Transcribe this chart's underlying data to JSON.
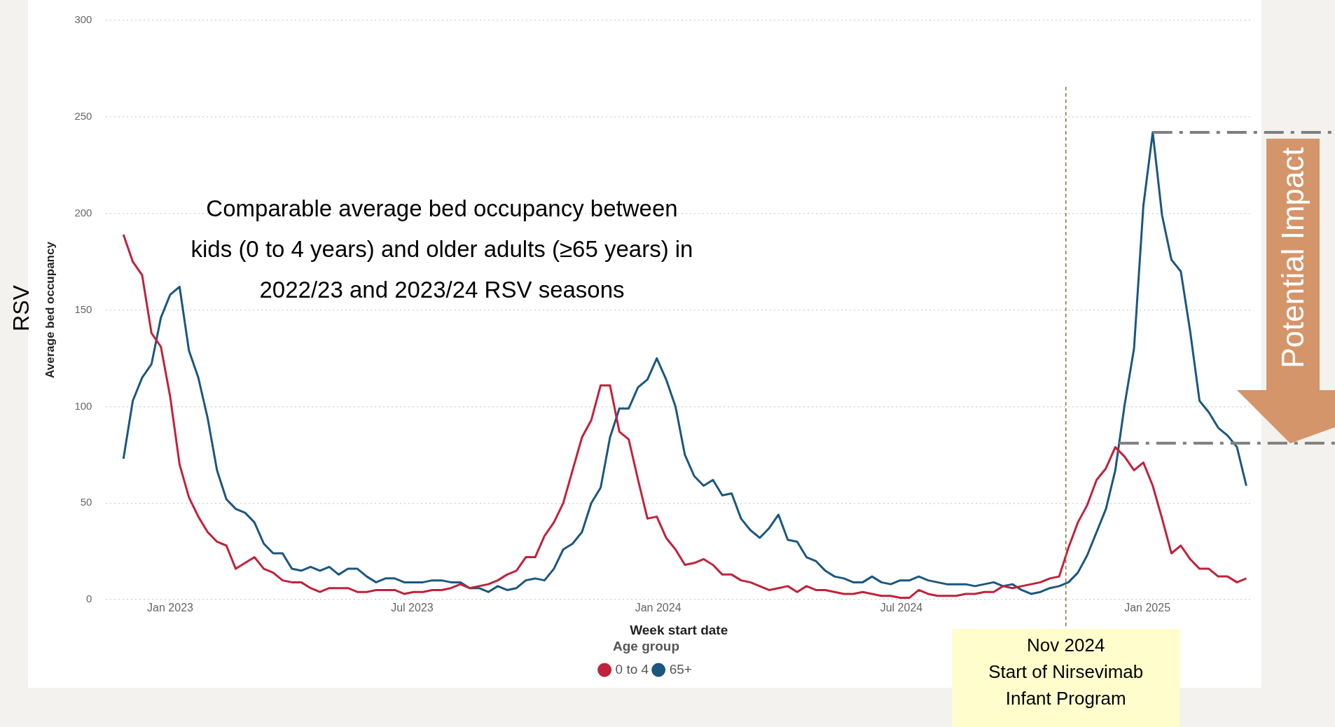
{
  "chart_data": {
    "type": "line",
    "xlabel": "Week start date",
    "ylabel": "Average bed occupancy",
    "legend_title": "Age group",
    "legend": "bottom",
    "grid": "y",
    "marker": "none",
    "line_style": "solid",
    "xlim": [
      "2022-11-14",
      "2025-03-20"
    ],
    "xticks": [
      {
        "value": "2023-01-01",
        "label": "Jan 2023"
      },
      {
        "value": "2023-07-01",
        "label": "Jul 2023"
      },
      {
        "value": "2024-01-01",
        "label": "Jan 2024"
      },
      {
        "value": "2024-07-01",
        "label": "Jul 2024"
      },
      {
        "value": "2025-01-01",
        "label": "Jan 2025"
      }
    ],
    "ylim": [
      0,
      300
    ],
    "yticks": [
      0,
      50,
      100,
      150,
      200,
      250,
      300
    ],
    "x": [
      "2022-11-27",
      "2022-12-04",
      "2022-12-11",
      "2022-12-18",
      "2022-12-25",
      "2023-01-01",
      "2023-01-08",
      "2023-01-15",
      "2023-01-22",
      "2023-01-29",
      "2023-02-05",
      "2023-02-12",
      "2023-02-19",
      "2023-02-26",
      "2023-03-05",
      "2023-03-12",
      "2023-03-19",
      "2023-03-26",
      "2023-04-02",
      "2023-04-09",
      "2023-04-16",
      "2023-04-23",
      "2023-04-30",
      "2023-05-07",
      "2023-05-14",
      "2023-05-21",
      "2023-05-28",
      "2023-06-04",
      "2023-06-11",
      "2023-06-18",
      "2023-06-25",
      "2023-07-02",
      "2023-07-09",
      "2023-07-16",
      "2023-07-23",
      "2023-07-30",
      "2023-08-06",
      "2023-08-13",
      "2023-08-20",
      "2023-08-27",
      "2023-09-03",
      "2023-09-10",
      "2023-09-17",
      "2023-09-24",
      "2023-10-01",
      "2023-10-08",
      "2023-10-15",
      "2023-10-22",
      "2023-10-29",
      "2023-11-05",
      "2023-11-12",
      "2023-11-19",
      "2023-11-26",
      "2023-12-03",
      "2023-12-10",
      "2023-12-17",
      "2023-12-24",
      "2023-12-31",
      "2024-01-07",
      "2024-01-14",
      "2024-01-21",
      "2024-01-28",
      "2024-02-04",
      "2024-02-11",
      "2024-02-18",
      "2024-02-25",
      "2024-03-03",
      "2024-03-10",
      "2024-03-17",
      "2024-03-24",
      "2024-03-31",
      "2024-04-07",
      "2024-04-14",
      "2024-04-21",
      "2024-04-28",
      "2024-05-05",
      "2024-05-12",
      "2024-05-19",
      "2024-05-26",
      "2024-06-02",
      "2024-06-09",
      "2024-06-16",
      "2024-06-23",
      "2024-06-30",
      "2024-07-07",
      "2024-07-14",
      "2024-07-21",
      "2024-07-28",
      "2024-08-04",
      "2024-08-11",
      "2024-08-18",
      "2024-08-25",
      "2024-09-01",
      "2024-09-08",
      "2024-09-15",
      "2024-09-22",
      "2024-09-29",
      "2024-10-06",
      "2024-10-13",
      "2024-10-20",
      "2024-10-27",
      "2024-11-03",
      "2024-11-10",
      "2024-11-17",
      "2024-11-24",
      "2024-12-01",
      "2024-12-08",
      "2024-12-15",
      "2024-12-22",
      "2024-12-29",
      "2025-01-05",
      "2025-01-12",
      "2025-01-19",
      "2025-01-26",
      "2025-02-02",
      "2025-02-09",
      "2025-02-16",
      "2025-02-23",
      "2025-03-02",
      "2025-03-09",
      "2025-03-16"
    ],
    "series": [
      {
        "name": "0 to 4",
        "color": "#c0223b",
        "values": [
          189,
          175,
          168,
          138,
          131,
          105,
          70,
          53,
          43,
          35,
          30,
          28,
          16,
          19,
          22,
          16,
          14,
          10,
          9,
          9,
          6,
          4,
          6,
          6,
          6,
          4,
          4,
          5,
          5,
          5,
          3,
          4,
          4,
          5,
          5,
          6,
          8,
          6,
          7,
          8,
          10,
          13,
          15,
          22,
          22,
          33,
          40,
          50,
          67,
          84,
          93,
          111,
          111,
          87,
          83,
          62,
          42,
          43,
          32,
          26,
          18,
          19,
          21,
          18,
          13,
          13,
          10,
          9,
          7,
          5,
          6,
          7,
          4,
          7,
          5,
          5,
          4,
          3,
          3,
          4,
          3,
          2,
          2,
          1,
          1,
          5,
          3,
          2,
          2,
          2,
          3,
          3,
          4,
          4,
          7,
          6,
          7,
          8,
          9,
          11,
          12,
          27,
          40,
          49,
          62,
          68,
          79,
          74,
          67,
          71,
          59,
          42,
          24,
          28,
          21,
          16,
          16,
          12,
          12,
          9,
          11
        ]
      },
      {
        "name": "65+",
        "color": "#1b577f",
        "values": [
          73,
          103,
          115,
          122,
          146,
          158,
          162,
          129,
          115,
          94,
          67,
          52,
          47,
          45,
          40,
          29,
          24,
          24,
          16,
          15,
          17,
          15,
          17,
          13,
          16,
          16,
          12,
          9,
          11,
          11,
          9,
          9,
          9,
          10,
          10,
          9,
          9,
          6,
          6,
          4,
          7,
          5,
          6,
          10,
          11,
          10,
          16,
          26,
          29,
          35,
          50,
          58,
          84,
          99,
          99,
          110,
          114,
          125,
          114,
          100,
          75,
          64,
          59,
          62,
          54,
          55,
          42,
          36,
          32,
          37,
          44,
          31,
          30,
          22,
          20,
          15,
          12,
          11,
          9,
          9,
          12,
          9,
          8,
          10,
          10,
          12,
          10,
          9,
          8,
          8,
          8,
          7,
          8,
          9,
          7,
          8,
          5,
          3,
          4,
          6,
          7,
          9,
          14,
          23,
          35,
          47,
          67,
          101,
          130,
          204,
          242,
          199,
          176,
          170,
          139,
          103,
          97,
          89,
          85,
          79,
          59
        ]
      }
    ],
    "ref_lines": [
      {
        "axis": "x",
        "value": "2024-11-01",
        "label": "Nov 2024\nStart of Nirsevimab\nInfant Program",
        "color": "#8b7332",
        "line_style": "dotted"
      },
      {
        "axis": "y",
        "value": 242,
        "color": "#7f7f7f",
        "line_style": "dashed"
      },
      {
        "axis": "y",
        "value": 81,
        "color": "#7f7f7f",
        "line_style": "dashed"
      }
    ],
    "annotations": [
      "Comparable average bed occupancy between kids (0 to 4 years) and older adults (≥65 years) in 2022/23 and 2023/24 RSV seasons",
      "Potential Impact",
      "RSV"
    ]
  }
}
